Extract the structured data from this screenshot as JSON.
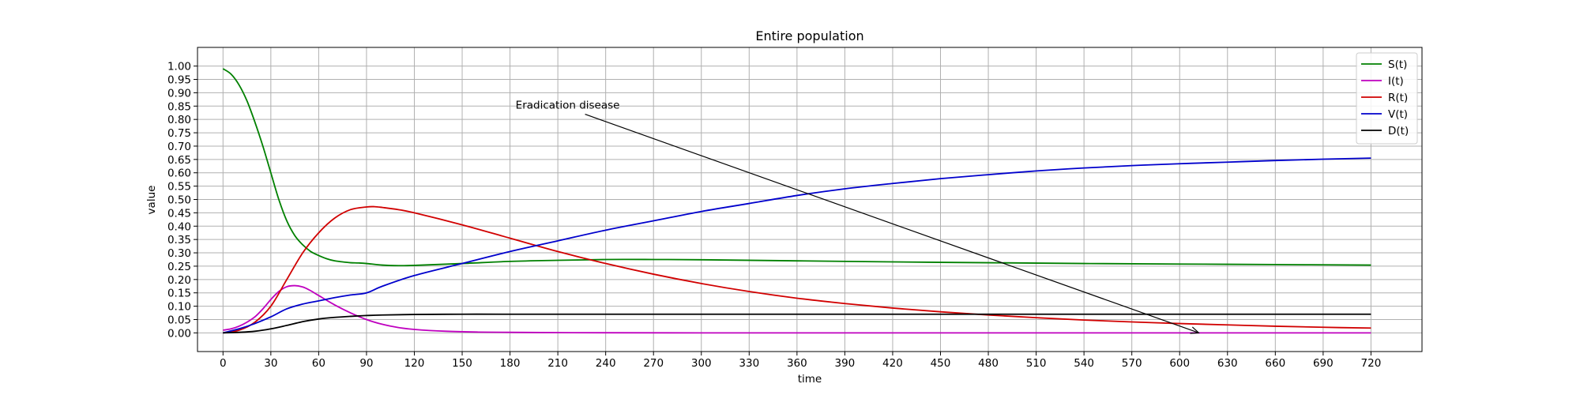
{
  "chart_data": {
    "type": "line",
    "title": "Entire population",
    "xlabel": "time",
    "ylabel": "value",
    "xlim": [
      -16,
      752
    ],
    "ylim": [
      -0.07,
      1.07
    ],
    "xticks": [
      0,
      30,
      60,
      90,
      120,
      150,
      180,
      210,
      240,
      270,
      300,
      330,
      360,
      390,
      420,
      450,
      480,
      510,
      540,
      570,
      600,
      630,
      660,
      690,
      720
    ],
    "yticks": [
      0.0,
      0.05,
      0.1,
      0.15,
      0.2,
      0.25,
      0.3,
      0.35,
      0.4,
      0.45,
      0.5,
      0.55,
      0.6,
      0.65,
      0.7,
      0.75,
      0.8,
      0.85,
      0.9,
      0.95,
      1.0
    ],
    "grid": true,
    "legend_position": "top-right",
    "series": [
      {
        "name": "S(t)",
        "color": "#008000",
        "x": [
          0,
          5,
          10,
          15,
          20,
          25,
          30,
          35,
          40,
          45,
          50,
          55,
          60,
          65,
          70,
          75,
          80,
          85,
          90,
          100,
          110,
          120,
          150,
          180,
          210,
          240,
          270,
          300,
          360,
          420,
          480,
          540,
          600,
          660,
          720
        ],
        "y": [
          0.99,
          0.97,
          0.93,
          0.87,
          0.79,
          0.7,
          0.6,
          0.5,
          0.42,
          0.365,
          0.33,
          0.305,
          0.29,
          0.278,
          0.27,
          0.266,
          0.263,
          0.262,
          0.26,
          0.254,
          0.252,
          0.253,
          0.26,
          0.268,
          0.272,
          0.275,
          0.275,
          0.274,
          0.27,
          0.266,
          0.263,
          0.26,
          0.258,
          0.256,
          0.254
        ]
      },
      {
        "name": "I(t)",
        "color": "#bf00bf",
        "x": [
          0,
          5,
          10,
          15,
          20,
          25,
          30,
          35,
          40,
          45,
          50,
          55,
          60,
          70,
          80,
          90,
          100,
          110,
          120,
          140,
          160,
          180,
          210,
          240,
          300,
          360,
          480,
          600,
          720
        ],
        "y": [
          0.01,
          0.015,
          0.025,
          0.04,
          0.06,
          0.09,
          0.125,
          0.155,
          0.173,
          0.177,
          0.172,
          0.158,
          0.14,
          0.105,
          0.075,
          0.05,
          0.032,
          0.02,
          0.013,
          0.006,
          0.003,
          0.002,
          0.001,
          0.0005,
          0.0,
          0.0,
          0.0,
          0.0,
          0.0
        ]
      },
      {
        "name": "R(t)",
        "color": "#d10000",
        "x": [
          0,
          10,
          20,
          30,
          40,
          50,
          60,
          70,
          80,
          90,
          95,
          100,
          110,
          120,
          150,
          180,
          210,
          240,
          270,
          300,
          330,
          360,
          390,
          420,
          450,
          480,
          510,
          540,
          570,
          600,
          630,
          660,
          690,
          720
        ],
        "y": [
          0.0,
          0.01,
          0.04,
          0.1,
          0.2,
          0.3,
          0.375,
          0.43,
          0.462,
          0.472,
          0.473,
          0.47,
          0.462,
          0.45,
          0.405,
          0.355,
          0.305,
          0.26,
          0.22,
          0.185,
          0.155,
          0.13,
          0.11,
          0.093,
          0.079,
          0.067,
          0.057,
          0.048,
          0.041,
          0.035,
          0.03,
          0.025,
          0.021,
          0.018
        ]
      },
      {
        "name": "V(t)",
        "color": "#0000cc",
        "x": [
          0,
          10,
          20,
          30,
          40,
          50,
          60,
          70,
          80,
          90,
          100,
          120,
          150,
          180,
          210,
          240,
          270,
          300,
          330,
          360,
          390,
          420,
          450,
          480,
          510,
          540,
          570,
          600,
          630,
          660,
          690,
          720
        ],
        "y": [
          0.0,
          0.015,
          0.035,
          0.06,
          0.09,
          0.108,
          0.12,
          0.132,
          0.142,
          0.15,
          0.175,
          0.215,
          0.26,
          0.305,
          0.345,
          0.385,
          0.42,
          0.455,
          0.485,
          0.515,
          0.54,
          0.56,
          0.578,
          0.593,
          0.607,
          0.618,
          0.627,
          0.634,
          0.64,
          0.646,
          0.651,
          0.655
        ]
      },
      {
        "name": "D(t)",
        "color": "#000000",
        "x": [
          0,
          10,
          20,
          30,
          40,
          50,
          60,
          70,
          80,
          90,
          100,
          120,
          150,
          180,
          240,
          360,
          480,
          600,
          720
        ],
        "y": [
          0.0,
          0.002,
          0.006,
          0.015,
          0.028,
          0.042,
          0.052,
          0.058,
          0.062,
          0.065,
          0.067,
          0.069,
          0.07,
          0.07,
          0.07,
          0.07,
          0.07,
          0.07,
          0.07
        ]
      }
    ],
    "annotations": [
      {
        "text": "Eradication disease",
        "text_x": 180,
        "text_y": 0.855,
        "arrow_to_x": 612,
        "arrow_to_y": 0.0
      }
    ]
  }
}
